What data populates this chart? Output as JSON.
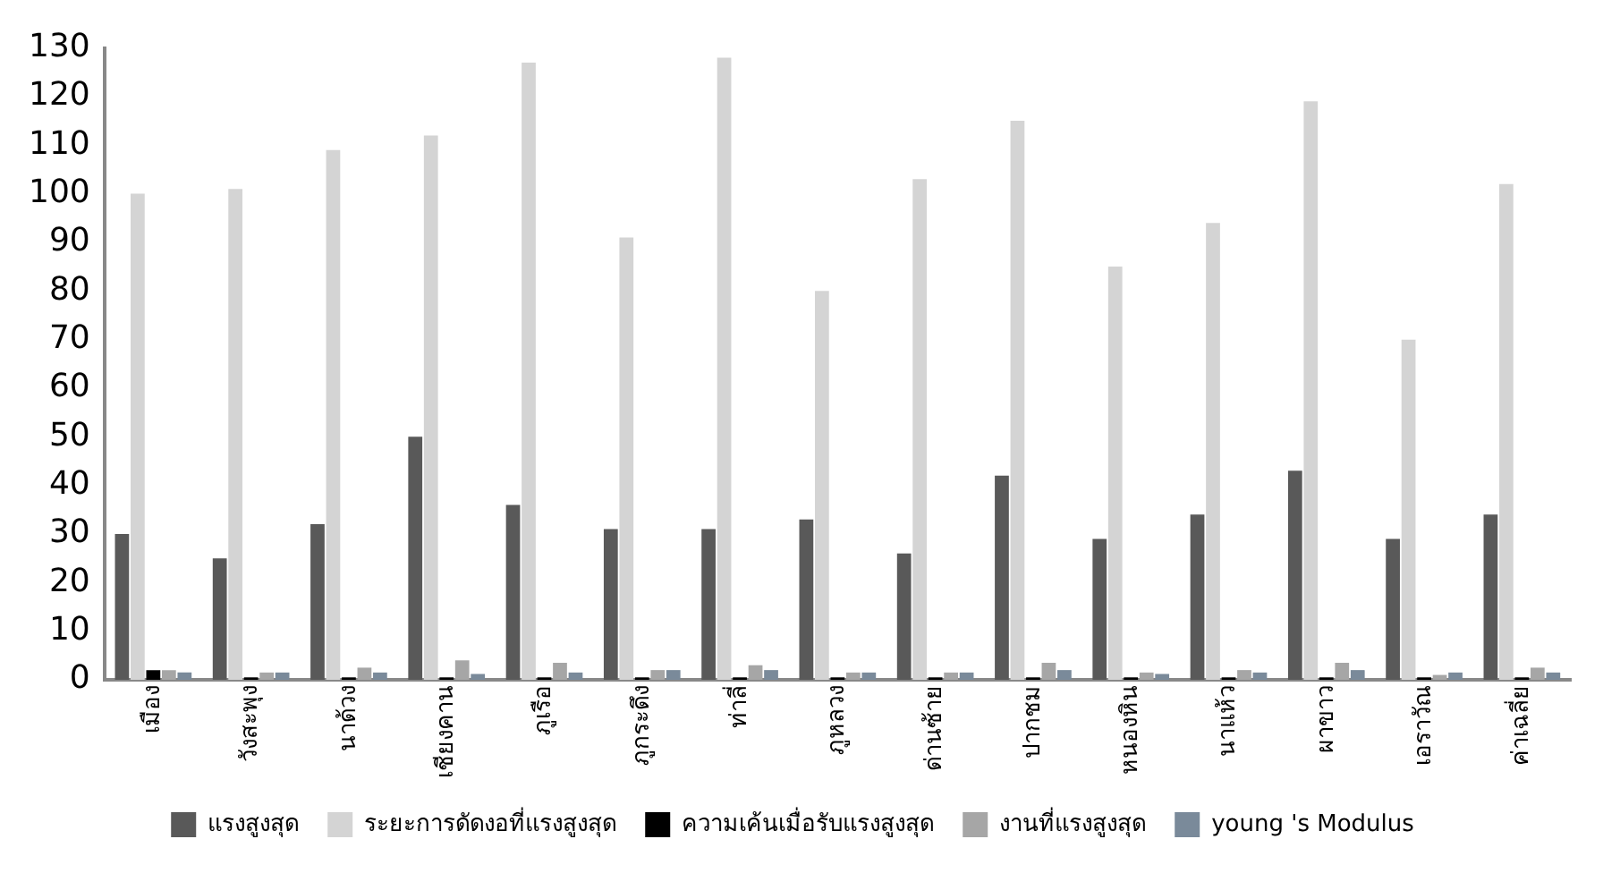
{
  "chart_data": {
    "type": "bar",
    "categories": [
      "เมือง",
      "วังสะพุง",
      "นาด้วง",
      "เชียงคาน",
      "ภูเรือ",
      "ภูกระดึง",
      "ท่าลี่",
      "ภูหลวง",
      "ด่านซ้าย",
      "ปากชม",
      "หนองหิน",
      "นาแห้ว",
      "ผาขาว",
      "เอราวัณ",
      "ค่าเฉลี่ย"
    ],
    "series": [
      {
        "name": "แรงสูงสุด",
        "color": "#595959",
        "values": [
          30,
          25,
          32,
          50,
          36,
          31,
          31,
          33,
          26,
          42,
          29,
          34,
          43,
          29,
          34
        ]
      },
      {
        "name": "ระยะการดัดงอที่แรงสูงสุด",
        "color": "#d4d4d4",
        "values": [
          100,
          101,
          109,
          112,
          127,
          91,
          128,
          80,
          103,
          115,
          85,
          94,
          119,
          70,
          102
        ]
      },
      {
        "name": "ความเค้นเมื่อรับแรงสูงสุด",
        "color": "#000000",
        "values": [
          2,
          0.5,
          0.5,
          0.5,
          0.5,
          0.5,
          0.5,
          0.5,
          0.5,
          0.5,
          0.5,
          0.5,
          0.5,
          0.5,
          0.5
        ]
      },
      {
        "name": "งานที่แรงสูงสุด",
        "color": "#a6a6a6",
        "values": [
          2,
          1.5,
          2.5,
          4,
          3.5,
          2,
          3,
          1.5,
          1.5,
          3.5,
          1.5,
          2,
          3.5,
          1,
          2.5
        ]
      },
      {
        "name": "young 's Modulus",
        "color": "#7a8a9a",
        "values": [
          1.5,
          1.5,
          1.5,
          1.2,
          1.5,
          2,
          2,
          1.5,
          1.5,
          2,
          1.2,
          1.5,
          2,
          1.5,
          1.5
        ]
      }
    ],
    "ylim": [
      0,
      130
    ],
    "yticks": [
      0,
      10,
      20,
      30,
      40,
      50,
      60,
      70,
      80,
      90,
      100,
      110,
      120,
      130
    ],
    "grid": false,
    "legend": "bottom"
  }
}
